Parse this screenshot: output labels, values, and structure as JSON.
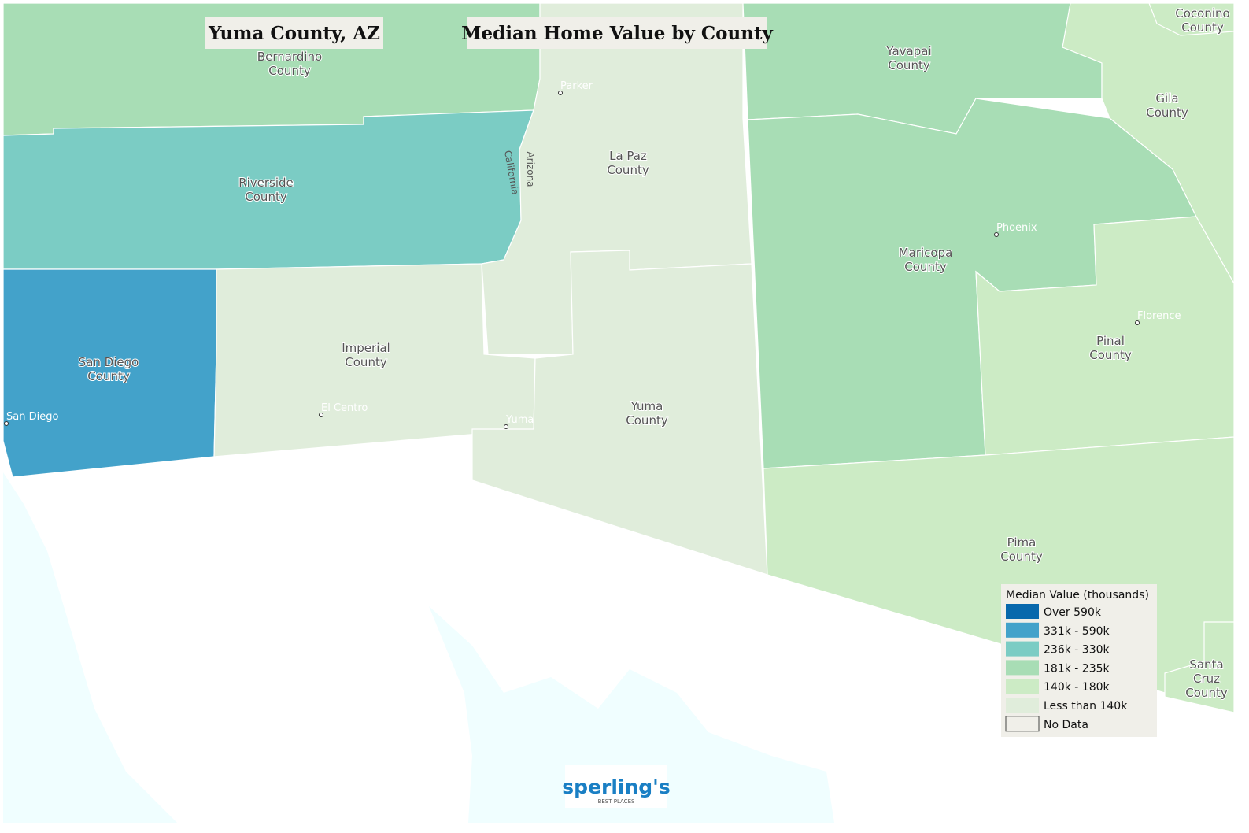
{
  "header": {
    "place": "Yuma County, AZ",
    "title": "Median Home Value by County"
  },
  "counties": [
    {
      "lines": [
        "Bernardino",
        "County"
      ],
      "color": "#a8ddb5"
    },
    {
      "lines": [
        "Riverside",
        "County"
      ],
      "color": "#7bccc4"
    },
    {
      "lines": [
        "San Diego",
        "County"
      ],
      "color": "#43a2ca"
    },
    {
      "lines": [
        "Imperial",
        "County"
      ],
      "color": "#e0eddb"
    },
    {
      "lines": [
        "La Paz",
        "County"
      ],
      "color": "#e0eddb"
    },
    {
      "lines": [
        "Yuma",
        "County"
      ],
      "color": "#e0eddb"
    },
    {
      "lines": [
        "Yavapai",
        "County"
      ],
      "color": "#a8ddb5"
    },
    {
      "lines": [
        "Maricopa",
        "County"
      ],
      "color": "#a8ddb5"
    },
    {
      "lines": [
        "Pinal",
        "County"
      ],
      "color": "#ccebc5"
    },
    {
      "lines": [
        "Pima",
        "County"
      ],
      "color": "#ccebc5"
    },
    {
      "lines": [
        "Gila",
        "County"
      ],
      "color": "#ccebc5"
    },
    {
      "lines": [
        "Coconino",
        "County"
      ],
      "color": "#ccebc5"
    },
    {
      "lines": [
        "Santa",
        "Cruz",
        "County"
      ],
      "color": "#ccebc5"
    }
  ],
  "cities": [
    "Parker",
    "Phoenix",
    "Florence",
    "El Centro",
    "Yuma",
    "San Diego"
  ],
  "states": [
    "Arizona",
    "California"
  ],
  "legend": {
    "title": "Median Value (thousands)",
    "items": [
      {
        "label": "Over 590k",
        "color": "#0868ac"
      },
      {
        "label": "331k - 590k",
        "color": "#43a2ca"
      },
      {
        "label": "236k - 330k",
        "color": "#7bccc4"
      },
      {
        "label": "181k - 235k",
        "color": "#a8ddb5"
      },
      {
        "label": "140k - 180k",
        "color": "#ccebc5"
      },
      {
        "label": "Less than 140k",
        "color": "#e0eddb"
      },
      {
        "label": "No Data",
        "color": "#f0efe9"
      }
    ]
  },
  "logo": {
    "name": "sperling's",
    "tagline": "BEST PLACES"
  }
}
